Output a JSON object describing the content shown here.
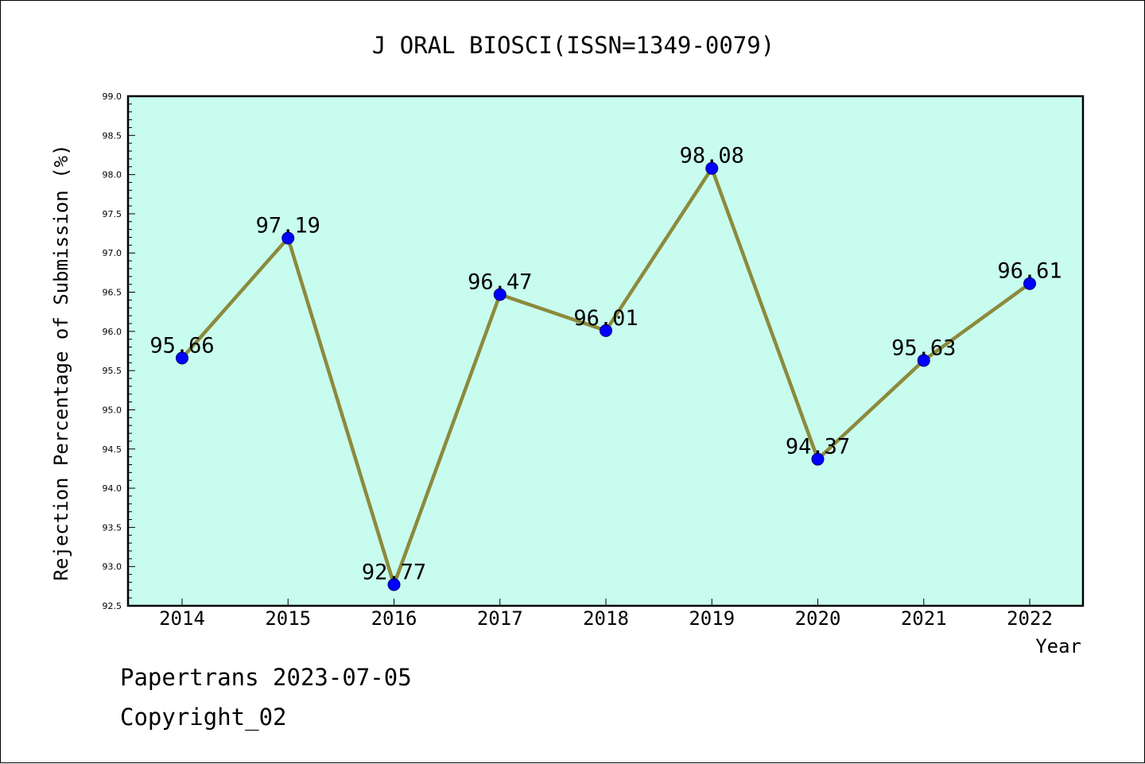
{
  "chart_data": {
    "type": "line",
    "title": "J ORAL BIOSCI(ISSN=1349-0079)",
    "xlabel": "Year",
    "ylabel": "Rejection Percentage of Submission (%)",
    "categories": [
      "2014",
      "2015",
      "2016",
      "2017",
      "2018",
      "2019",
      "2020",
      "2021",
      "2022"
    ],
    "series": [
      {
        "values": [
          95.66,
          97.19,
          92.77,
          96.47,
          96.01,
          98.08,
          94.37,
          95.63,
          96.61
        ],
        "data_labels": [
          "95.66",
          "97.19",
          "92.77",
          "96.47",
          "96.01",
          "98.08",
          "94.37",
          "95.63",
          "96.61"
        ],
        "line_color": "#8c8a3c",
        "marker_color": "#0000ff"
      }
    ],
    "ylim": [
      92.5,
      99.0
    ],
    "y_ticks": [
      "92.5",
      "93.0",
      "93.5",
      "94.0",
      "94.5",
      "95.0",
      "95.5",
      "96.0",
      "96.5",
      "97.0",
      "97.5",
      "98.0",
      "98.5",
      "99.0"
    ],
    "plot_background": "#c8fcee",
    "grid": false,
    "legend": "none"
  },
  "footer": {
    "line1": "Papertrans 2023-07-05",
    "line2": "Copyright_02"
  }
}
